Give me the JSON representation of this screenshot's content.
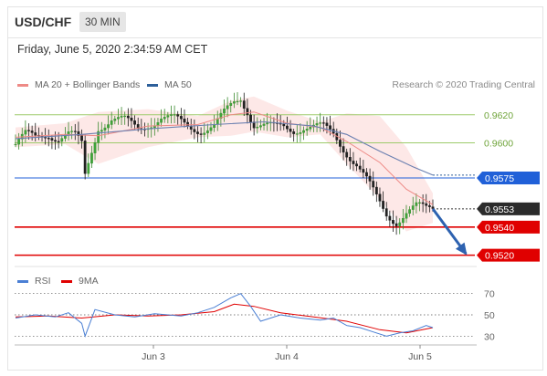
{
  "header": {
    "symbol": "USD/CHF",
    "timeframe": "30 MIN",
    "datetime": "Friday, June 5, 2020 2:34:59 AM CET"
  },
  "legend": {
    "ma20": {
      "label": "MA 20 + Bollinger Bands",
      "color": "#ee8a86"
    },
    "ma50": {
      "label": "MA 50",
      "color": "#2d5f9a"
    }
  },
  "credit": "Research © 2020 Trading Central",
  "rsi_legend": {
    "rsi": {
      "label": "RSI",
      "color": "#4a7fd4"
    },
    "ma9": {
      "label": "9MA",
      "color": "#e00000"
    }
  },
  "chart_data": {
    "type": "candlestick",
    "xlabels": [
      "Jun 3",
      "Jun 4",
      "Jun 5"
    ],
    "ylim": [
      0.951,
      0.964
    ],
    "current_price": "0.9553",
    "levels": [
      {
        "value": 0.962,
        "label": "0.9620",
        "kind": "target",
        "color": "#9dcb6b",
        "text_color": "#6fa43a"
      },
      {
        "value": 0.96,
        "label": "0.9600",
        "kind": "target",
        "color": "#9dcb6b",
        "text_color": "#6fa43a"
      },
      {
        "value": 0.9575,
        "label": "0.9575",
        "kind": "pivot",
        "color": "#2060d8",
        "text_color": "#ffffff"
      },
      {
        "value": 0.954,
        "label": "0.9540",
        "kind": "support",
        "color": "#e00000",
        "text_color": "#ffffff"
      },
      {
        "value": 0.952,
        "label": "0.9520",
        "kind": "support",
        "color": "#e00000",
        "text_color": "#ffffff"
      }
    ],
    "price_path": [
      [
        0,
        0.9599
      ],
      [
        3,
        0.9605
      ],
      [
        6,
        0.9603
      ],
      [
        10,
        0.9607
      ],
      [
        13,
        0.9604
      ],
      [
        16,
        0.9606
      ],
      [
        18,
        0.9604
      ],
      [
        20,
        0.9598
      ],
      [
        21,
        0.9576
      ],
      [
        22,
        0.9585
      ],
      [
        25,
        0.9612
      ],
      [
        29,
        0.9617
      ],
      [
        33,
        0.9615
      ],
      [
        37,
        0.961
      ],
      [
        40,
        0.9614
      ],
      [
        44,
        0.9618
      ],
      [
        48,
        0.9616
      ],
      [
        52,
        0.9612
      ],
      [
        56,
        0.961
      ],
      [
        60,
        0.9612
      ],
      [
        63,
        0.962
      ],
      [
        66,
        0.9628
      ],
      [
        68,
        0.9632
      ],
      [
        70,
        0.9624
      ],
      [
        72,
        0.9614
      ],
      [
        75,
        0.9612
      ],
      [
        78,
        0.961
      ],
      [
        81,
        0.9611
      ],
      [
        84,
        0.961
      ],
      [
        87,
        0.9612
      ],
      [
        90,
        0.9611
      ],
      [
        93,
        0.961
      ],
      [
        96,
        0.9606
      ],
      [
        98,
        0.96
      ],
      [
        100,
        0.9594
      ],
      [
        103,
        0.9585
      ],
      [
        106,
        0.9573
      ],
      [
        109,
        0.956
      ],
      [
        112,
        0.9549
      ],
      [
        115,
        0.9545
      ],
      [
        118,
        0.9551
      ],
      [
        121,
        0.9554
      ],
      [
        124,
        0.9552
      ],
      [
        126,
        0.9553
      ]
    ],
    "ma50": [
      [
        0,
        0.9603
      ],
      [
        20,
        0.9606
      ],
      [
        40,
        0.961
      ],
      [
        60,
        0.9613
      ],
      [
        75,
        0.9615
      ],
      [
        90,
        0.9612
      ],
      [
        100,
        0.9606
      ],
      [
        110,
        0.9594
      ],
      [
        120,
        0.9583
      ],
      [
        126,
        0.9577
      ]
    ],
    "ma20": [
      [
        0,
        0.9604
      ],
      [
        15,
        0.9606
      ],
      [
        25,
        0.9605
      ],
      [
        40,
        0.9612
      ],
      [
        55,
        0.9613
      ],
      [
        65,
        0.962
      ],
      [
        72,
        0.9622
      ],
      [
        82,
        0.9614
      ],
      [
        92,
        0.9611
      ],
      [
        100,
        0.9601
      ],
      [
        110,
        0.9586
      ],
      [
        118,
        0.9567
      ],
      [
        126,
        0.9556
      ]
    ],
    "bb_upper": [
      [
        0,
        0.9611
      ],
      [
        15,
        0.9614
      ],
      [
        25,
        0.9622
      ],
      [
        40,
        0.9624
      ],
      [
        55,
        0.9619
      ],
      [
        65,
        0.963
      ],
      [
        72,
        0.9633
      ],
      [
        82,
        0.9623
      ],
      [
        92,
        0.9615
      ],
      [
        100,
        0.9621
      ],
      [
        110,
        0.9619
      ],
      [
        118,
        0.9597
      ],
      [
        126,
        0.9564
      ]
    ],
    "bb_lower": [
      [
        0,
        0.9597
      ],
      [
        15,
        0.9599
      ],
      [
        25,
        0.9585
      ],
      [
        40,
        0.9597
      ],
      [
        55,
        0.9604
      ],
      [
        65,
        0.9605
      ],
      [
        72,
        0.9608
      ],
      [
        82,
        0.9604
      ],
      [
        92,
        0.9606
      ],
      [
        100,
        0.9585
      ],
      [
        110,
        0.956
      ],
      [
        118,
        0.9537
      ],
      [
        126,
        0.9543
      ]
    ],
    "forecast": {
      "from": [
        126,
        0.9553
      ],
      "to": [
        136,
        0.9521
      ]
    },
    "rsi": {
      "ylim": [
        20,
        80
      ],
      "ticks": [
        70,
        50,
        30
      ],
      "values": [
        [
          0,
          47
        ],
        [
          6,
          50
        ],
        [
          12,
          48
        ],
        [
          16,
          52
        ],
        [
          20,
          42
        ],
        [
          21,
          30
        ],
        [
          24,
          55
        ],
        [
          30,
          50
        ],
        [
          36,
          48
        ],
        [
          42,
          51
        ],
        [
          50,
          49
        ],
        [
          55,
          52
        ],
        [
          60,
          57
        ],
        [
          65,
          66
        ],
        [
          68,
          70
        ],
        [
          71,
          58
        ],
        [
          74,
          44
        ],
        [
          80,
          50
        ],
        [
          86,
          47
        ],
        [
          92,
          45
        ],
        [
          96,
          47
        ],
        [
          100,
          40
        ],
        [
          104,
          38
        ],
        [
          108,
          34
        ],
        [
          112,
          30
        ],
        [
          116,
          33
        ],
        [
          120,
          35
        ],
        [
          124,
          40
        ],
        [
          126,
          38
        ]
      ],
      "ma9": [
        [
          0,
          48
        ],
        [
          10,
          49
        ],
        [
          20,
          47
        ],
        [
          30,
          50
        ],
        [
          40,
          49
        ],
        [
          50,
          50
        ],
        [
          60,
          53
        ],
        [
          66,
          60
        ],
        [
          72,
          58
        ],
        [
          80,
          52
        ],
        [
          90,
          48
        ],
        [
          100,
          44
        ],
        [
          110,
          36
        ],
        [
          118,
          33
        ],
        [
          126,
          38
        ]
      ]
    }
  }
}
